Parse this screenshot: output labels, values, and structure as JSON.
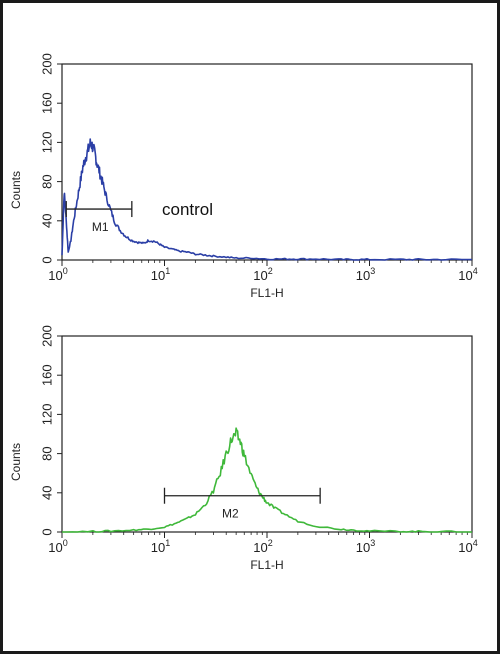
{
  "chart_data": [
    {
      "type": "line",
      "xscale": "log",
      "xlim": [
        1,
        10000
      ],
      "ylim": [
        0,
        200
      ],
      "xlabel": "FL1-H",
      "ylabel": "Counts",
      "x_ticks": [
        {
          "base": "10",
          "exp": "0",
          "value": 1
        },
        {
          "base": "10",
          "exp": "1",
          "value": 10
        },
        {
          "base": "10",
          "exp": "2",
          "value": 100
        },
        {
          "base": "10",
          "exp": "3",
          "value": 1000
        },
        {
          "base": "10",
          "exp": "4",
          "value": 10000
        }
      ],
      "y_ticks": [
        "0",
        "40",
        "80",
        "120",
        "160",
        "200"
      ],
      "annotation": "control",
      "color": "#2b3fa6",
      "gate": {
        "label": "M1",
        "x_start": 1.1,
        "x_end": 4.8,
        "y": 52
      },
      "series": [
        {
          "x": [
            1.0,
            1.05,
            1.1,
            1.15,
            1.22,
            1.3,
            1.4,
            1.5,
            1.6,
            1.7,
            1.8,
            1.9,
            2.0,
            2.1,
            2.2,
            2.35,
            2.5,
            2.7,
            3.0,
            3.3,
            3.7,
            4.2,
            4.8,
            5.5,
            6.3,
            7.0,
            8.0,
            9.0,
            10,
            12,
            14,
            17,
            20,
            25,
            30,
            40,
            50,
            70,
            100,
            150,
            200,
            300,
            500,
            700,
            1000,
            2000,
            3000,
            5000,
            10000
          ],
          "y": [
            5,
            70,
            40,
            8,
            20,
            40,
            60,
            78,
            95,
            105,
            112,
            120,
            115,
            108,
            98,
            88,
            78,
            65,
            50,
            38,
            30,
            24,
            20,
            18,
            17,
            20,
            19,
            16,
            13,
            11,
            9,
            8,
            6,
            5,
            4,
            3,
            2,
            2,
            1,
            1,
            1,
            1,
            0.5,
            0.5,
            0.5,
            0.5,
            0.5,
            0.5,
            0.5
          ]
        }
      ]
    },
    {
      "type": "line",
      "xscale": "log",
      "xlim": [
        1,
        10000
      ],
      "ylim": [
        0,
        200
      ],
      "xlabel": "FL1-H",
      "ylabel": "Counts",
      "x_ticks": [
        {
          "base": "10",
          "exp": "0",
          "value": 1
        },
        {
          "base": "10",
          "exp": "1",
          "value": 10
        },
        {
          "base": "10",
          "exp": "2",
          "value": 100
        },
        {
          "base": "10",
          "exp": "3",
          "value": 1000
        },
        {
          "base": "10",
          "exp": "4",
          "value": 10000
        }
      ],
      "y_ticks": [
        "0",
        "40",
        "80",
        "120",
        "160",
        "200"
      ],
      "color": "#3fb83a",
      "gate": {
        "label": "M2",
        "x_start": 10,
        "x_end": 330,
        "y": 37
      },
      "series": [
        {
          "x": [
            1,
            2,
            3,
            5,
            7,
            10,
            13,
            16,
            20,
            25,
            30,
            35,
            40,
            45,
            50,
            55,
            60,
            70,
            80,
            90,
            100,
            120,
            150,
            200,
            300,
            500,
            700,
            1000,
            2000,
            3000,
            5000,
            10000
          ],
          "y": [
            0,
            0.5,
            1,
            2,
            3,
            5,
            9,
            13,
            18,
            28,
            42,
            60,
            80,
            94,
            100,
            92,
            78,
            58,
            44,
            36,
            30,
            24,
            18,
            11,
            6,
            3,
            2,
            1,
            0.5,
            0.5,
            0.5,
            0
          ]
        }
      ]
    }
  ]
}
